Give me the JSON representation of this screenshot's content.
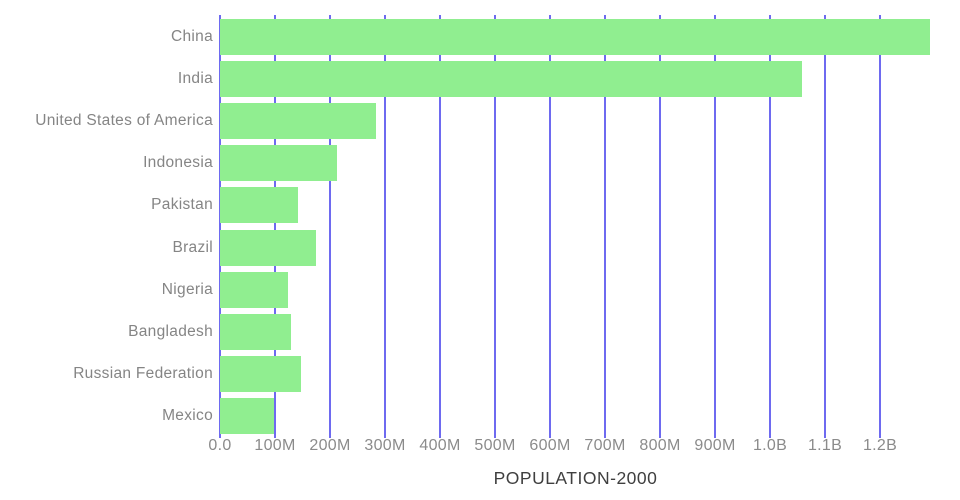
{
  "chart_data": {
    "type": "bar",
    "orientation": "horizontal",
    "title": "",
    "xlabel": "POPULATION-2000",
    "ylabel": "",
    "legend": false,
    "grid": true,
    "categories": [
      "China",
      "India",
      "United States of America",
      "Indonesia",
      "Pakistan",
      "Brazil",
      "Nigeria",
      "Bangladesh",
      "Russian Federation",
      "Mexico"
    ],
    "series": [
      {
        "name": "population-2000",
        "values_millions": [
          1290,
          1058,
          283,
          212,
          142,
          174,
          123,
          129,
          147,
          98
        ]
      }
    ],
    "xlim_millions": [
      0,
      1300
    ],
    "x_ticks": [
      {
        "value_millions": 0,
        "label": "0.0"
      },
      {
        "value_millions": 100,
        "label": "100M"
      },
      {
        "value_millions": 200,
        "label": "200M"
      },
      {
        "value_millions": 300,
        "label": "300M"
      },
      {
        "value_millions": 400,
        "label": "400M"
      },
      {
        "value_millions": 500,
        "label": "500M"
      },
      {
        "value_millions": 600,
        "label": "600M"
      },
      {
        "value_millions": 700,
        "label": "700M"
      },
      {
        "value_millions": 800,
        "label": "800M"
      },
      {
        "value_millions": 900,
        "label": "900M"
      },
      {
        "value_millions": 1000,
        "label": "1.0B"
      },
      {
        "value_millions": 1100,
        "label": "1.1B"
      },
      {
        "value_millions": 1200,
        "label": "1.2B"
      }
    ],
    "colors": {
      "bar": "#90ee90",
      "grid": "#6e6af0",
      "category_label": "#858585",
      "tick_label": "#8b8b8b",
      "title": "#3f3f3f",
      "background": "#ffffff"
    }
  }
}
